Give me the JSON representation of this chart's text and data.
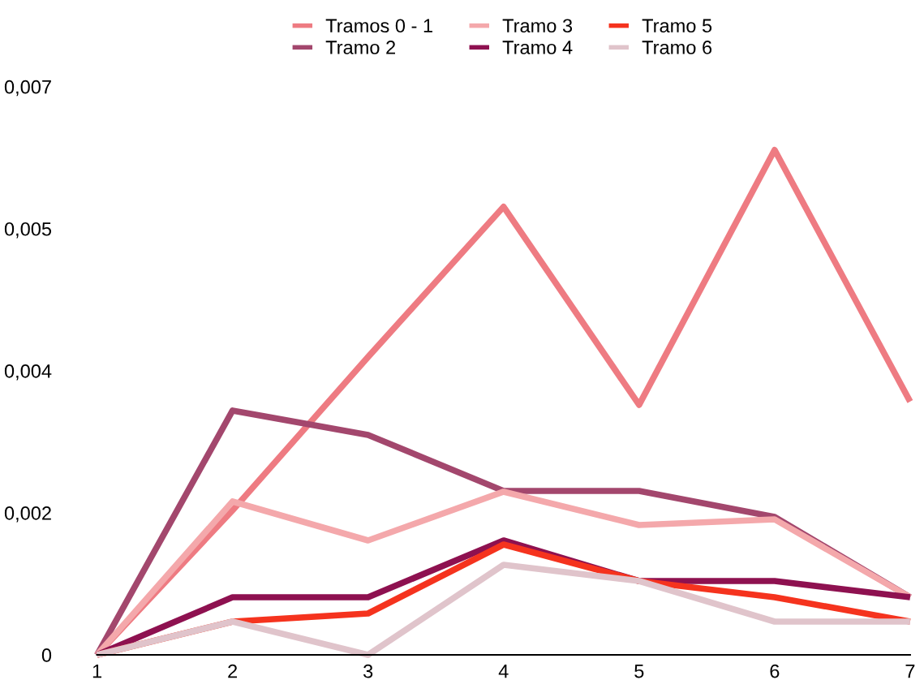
{
  "chart_data": {
    "type": "line",
    "x": [
      1,
      2,
      3,
      4,
      5,
      6,
      7
    ],
    "series": [
      {
        "name": "Tramos 0 - 1",
        "color": "#ee7b82",
        "values": [
          0,
          0.00178,
          0.00367,
          0.00552,
          0.00308,
          0.00622,
          0.00312
        ]
      },
      {
        "name": "Tramo 2",
        "color": "#a3476d",
        "values": [
          0,
          0.00301,
          0.00271,
          0.00202,
          0.00202,
          0.0017,
          0.00071
        ]
      },
      {
        "name": "Tramo 3",
        "color": "#f4a8ab",
        "values": [
          0,
          0.00189,
          0.00141,
          0.00201,
          0.0016,
          0.00167,
          0.00071
        ]
      },
      {
        "name": "Tramo 4",
        "color": "#8e1150",
        "values": [
          0,
          0.00071,
          0.00071,
          0.00141,
          0.00091,
          0.00091,
          0.00071
        ]
      },
      {
        "name": "Tramo 5",
        "color": "#f5331e",
        "values": [
          0,
          0.00041,
          0.00051,
          0.00136,
          0.00091,
          0.00071,
          0.00041
        ]
      },
      {
        "name": "Tramo 6",
        "color": "#e0c4cb",
        "values": [
          0,
          0.00041,
          0,
          0.00111,
          0.00091,
          0.00041,
          0.00041
        ]
      }
    ],
    "xlim": [
      1,
      7
    ],
    "xticks": [
      1,
      2,
      3,
      4,
      5,
      6,
      7
    ],
    "ylim": [
      0,
      0.007
    ],
    "yticks": [
      0,
      {
        "value": 0.00175,
        "label": "0,002"
      },
      {
        "value": 0.0035,
        "label": "0,004"
      },
      {
        "value": 0.00525,
        "label": "0,005"
      },
      {
        "value": 0.007,
        "label": "0,007"
      }
    ],
    "grid": false,
    "legend": "top",
    "marker": "none",
    "line_style": "solid"
  }
}
